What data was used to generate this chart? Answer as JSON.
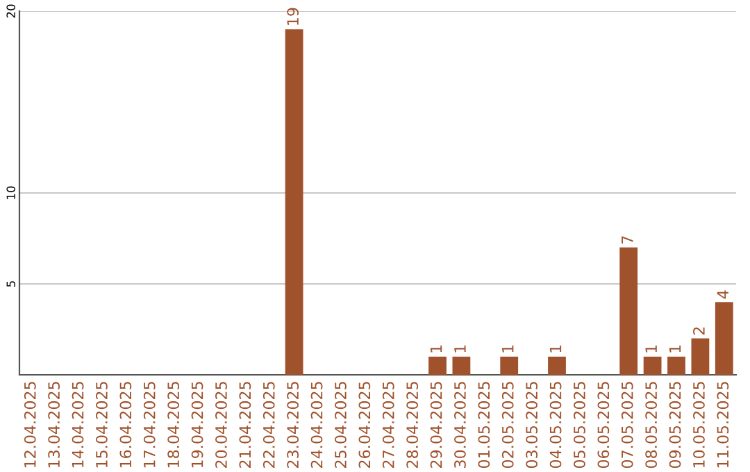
{
  "chart_data": {
    "type": "bar",
    "categories": [
      "12.04.2025",
      "13.04.2025",
      "14.04.2025",
      "15.04.2025",
      "16.04.2025",
      "17.04.2025",
      "18.04.2025",
      "19.04.2025",
      "20.04.2025",
      "21.04.2025",
      "22.04.2025",
      "23.04.2025",
      "24.04.2025",
      "25.04.2025",
      "26.04.2025",
      "27.04.2025",
      "28.04.2025",
      "29.04.2025",
      "30.04.2025",
      "01.05.2025",
      "02.05.2025",
      "03.05.2025",
      "04.05.2025",
      "05.05.2025",
      "06.05.2025",
      "07.05.2025",
      "08.05.2025",
      "09.05.2025",
      "10.05.2025",
      "11.05.2025"
    ],
    "values": [
      0,
      0,
      0,
      0,
      0,
      0,
      0,
      0,
      0,
      0,
      0,
      19,
      0,
      0,
      0,
      0,
      0,
      1,
      1,
      0,
      1,
      0,
      1,
      0,
      0,
      7,
      1,
      1,
      2,
      4
    ],
    "value_labels": [
      null,
      null,
      null,
      null,
      null,
      null,
      null,
      null,
      null,
      null,
      null,
      "19",
      null,
      null,
      null,
      null,
      null,
      "1",
      "1",
      null,
      "1",
      null,
      "1",
      null,
      null,
      "7",
      "1",
      "1",
      "2",
      "4"
    ],
    "color": "#a0522d",
    "ylim": [
      0,
      20
    ],
    "yticks": [
      5,
      10,
      20
    ],
    "grid": "y"
  }
}
